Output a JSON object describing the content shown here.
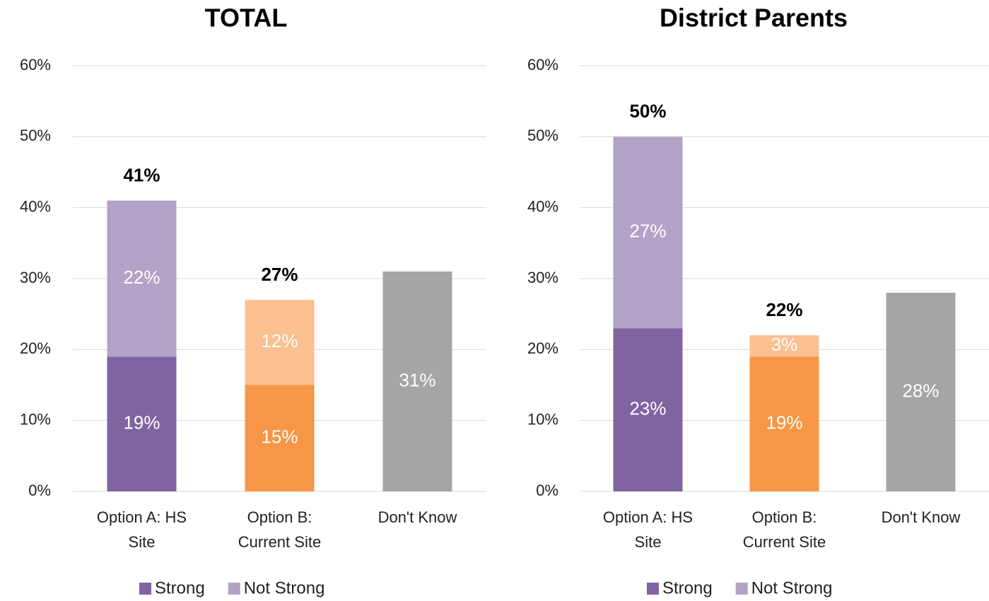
{
  "chart_data": [
    {
      "type": "stacked_bar",
      "title": "TOTAL",
      "categories": [
        [
          "Option A: HS",
          "Site"
        ],
        [
          "Option B:",
          "Current Site"
        ],
        [
          "Don't Know"
        ]
      ],
      "series": [
        {
          "name": "Strong",
          "color": "#8064a2",
          "point_colors": [
            "#8064a2",
            "#f79646",
            null
          ],
          "values": [
            19,
            15,
            null
          ],
          "value_labels": [
            "19%",
            "15%",
            null
          ]
        },
        {
          "name": "Not Strong",
          "color": "#b2a2c7",
          "point_colors": [
            "#b2a2c7",
            "#fac090",
            null
          ],
          "values": [
            22,
            12,
            null
          ],
          "value_labels": [
            "22%",
            "12%",
            null
          ]
        },
        {
          "point_colors": [
            null,
            null,
            "#a5a5a5"
          ],
          "values": [
            null,
            null,
            31
          ],
          "value_labels": [
            null,
            null,
            "31%"
          ]
        }
      ],
      "totals": {
        "values": [
          41,
          27,
          null
        ],
        "value_labels": [
          "41%",
          "27%",
          null
        ]
      },
      "ylim": [
        0,
        60
      ],
      "yticks": [
        {
          "value": 0,
          "label": "0%"
        },
        {
          "value": 10,
          "label": "10%"
        },
        {
          "value": 20,
          "label": "20%"
        },
        {
          "value": 30,
          "label": "30%"
        },
        {
          "value": 40,
          "label": "40%"
        },
        {
          "value": 50,
          "label": "50%"
        },
        {
          "value": 60,
          "label": "60%"
        }
      ],
      "grid": true,
      "legend": "bottom"
    },
    {
      "type": "stacked_bar",
      "title": "District Parents",
      "categories": [
        [
          "Option A: HS",
          "Site"
        ],
        [
          "Option B:",
          "Current Site"
        ],
        [
          "Don't Know"
        ]
      ],
      "series": [
        {
          "name": "Strong",
          "color": "#8064a2",
          "point_colors": [
            "#8064a2",
            "#f79646",
            null
          ],
          "values": [
            23,
            19,
            null
          ],
          "value_labels": [
            "23%",
            "19%",
            null
          ]
        },
        {
          "name": "Not Strong",
          "color": "#b2a2c7",
          "point_colors": [
            "#b2a2c7",
            "#fac090",
            null
          ],
          "values": [
            27,
            3,
            null
          ],
          "value_labels": [
            "27%",
            "3%",
            null
          ]
        },
        {
          "point_colors": [
            null,
            null,
            "#a5a5a5"
          ],
          "values": [
            null,
            null,
            28
          ],
          "value_labels": [
            null,
            null,
            "28%"
          ]
        }
      ],
      "totals": {
        "values": [
          50,
          22,
          null
        ],
        "value_labels": [
          "50%",
          "22%",
          null
        ]
      },
      "ylim": [
        0,
        60
      ],
      "yticks": [
        {
          "value": 0,
          "label": "0%"
        },
        {
          "value": 10,
          "label": "10%"
        },
        {
          "value": 20,
          "label": "20%"
        },
        {
          "value": 30,
          "label": "30%"
        },
        {
          "value": 40,
          "label": "40%"
        },
        {
          "value": 50,
          "label": "50%"
        },
        {
          "value": 60,
          "label": "60%"
        }
      ],
      "grid": true,
      "legend": "bottom"
    }
  ]
}
